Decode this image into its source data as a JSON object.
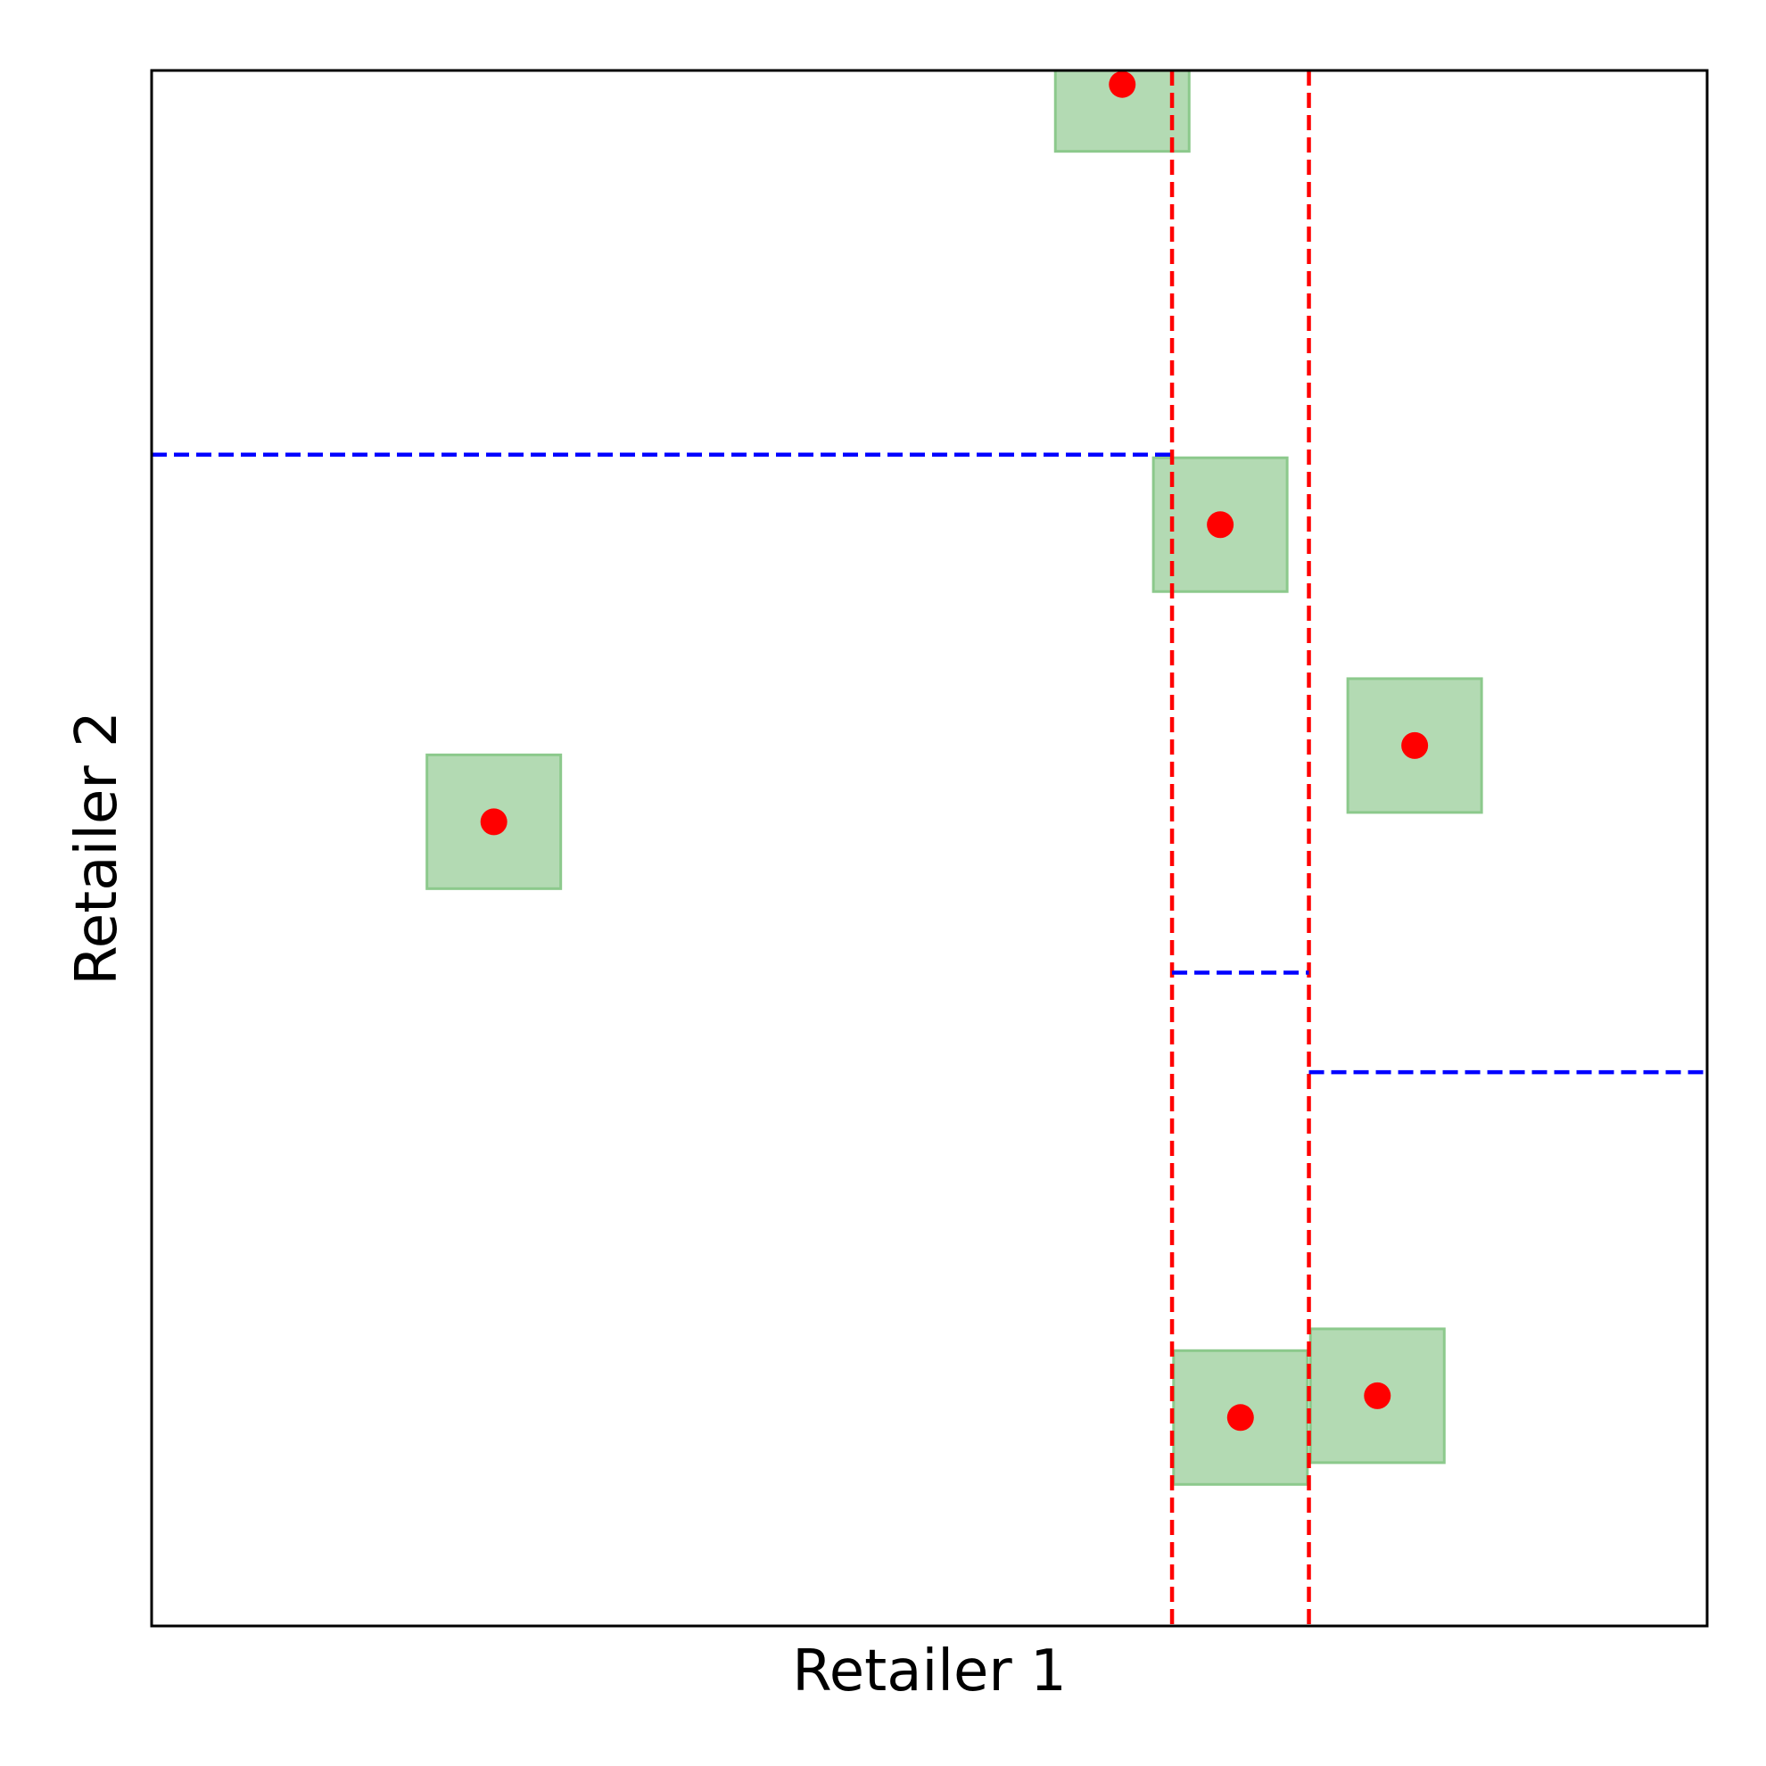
{
  "chart_data": {
    "type": "scatter",
    "xlabel": "Retailer 1",
    "ylabel": "Retailer 2",
    "xlim": [
      0,
      1
    ],
    "ylim": [
      0,
      1
    ],
    "ticks_visible": false,
    "grid": false,
    "colors": {
      "point": "#ff0000",
      "square_fill": "#b3dab3",
      "square_edge": "#8cc98c",
      "vertical_threshold": "#ff0000",
      "horizontal_threshold": "#0000ff",
      "frame": "#000000"
    },
    "square_half_width": 0.043,
    "points": [
      {
        "x": 0.624,
        "y": 0.991
      },
      {
        "x": 0.687,
        "y": 0.708
      },
      {
        "x": 0.812,
        "y": 0.566
      },
      {
        "x": 0.22,
        "y": 0.517
      },
      {
        "x": 0.7,
        "y": 0.134
      },
      {
        "x": 0.788,
        "y": 0.148
      }
    ],
    "vertical_lines": [
      {
        "x": 0.656
      },
      {
        "x": 0.744
      }
    ],
    "horizontal_segments": [
      {
        "y": 0.753,
        "x_from": 0.0,
        "x_to": 0.656
      },
      {
        "y": 0.42,
        "x_from": 0.656,
        "x_to": 0.744
      },
      {
        "y": 0.356,
        "x_from": 0.744,
        "x_to": 1.0
      }
    ]
  }
}
